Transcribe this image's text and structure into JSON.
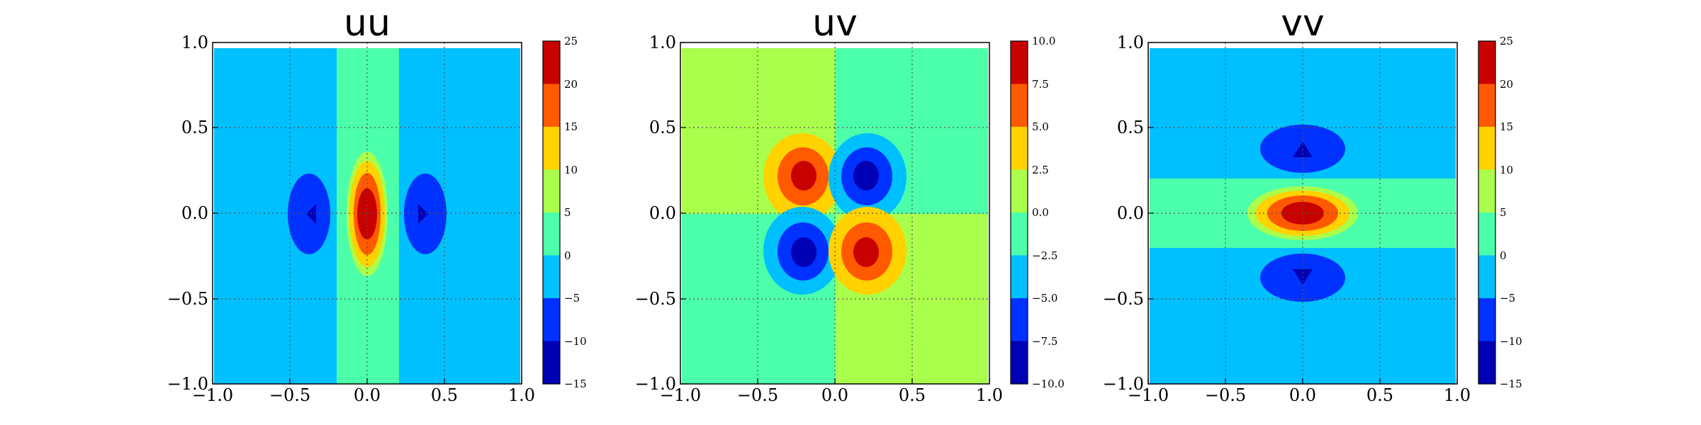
{
  "chart_data": [
    {
      "type": "contour",
      "title": "uu",
      "xlim": [
        -1.0,
        1.0
      ],
      "ylim": [
        -1.0,
        1.0
      ],
      "x_ticks": [
        "−1.0",
        "−0.5",
        "0.0",
        "0.5",
        "1.0"
      ],
      "y_ticks": [
        "1.0",
        "0.5",
        "0.0",
        "−0.5",
        "−1.0"
      ],
      "grid": true,
      "colorbar": {
        "levels": [
          "25",
          "20",
          "15",
          "10",
          "5",
          "0",
          "−5",
          "−10",
          "−15"
        ],
        "range": [
          -15,
          25
        ]
      },
      "background_level": "-5..0",
      "regions": [
        {
          "shape": "band",
          "x": [
            -0.2,
            0.2
          ],
          "level": "0..5"
        },
        {
          "shape": "blob",
          "cx": -0.35,
          "cy": 0.0,
          "rx": 0.09,
          "ry": 0.24,
          "level": "-10..-5",
          "peak": -12
        },
        {
          "shape": "blob",
          "cx": 0.35,
          "cy": 0.0,
          "rx": 0.09,
          "ry": 0.24,
          "level": "-10..-5",
          "peak": -12
        },
        {
          "shape": "blob",
          "cx": 0.0,
          "cy": 0.0,
          "rx": 0.13,
          "ry": 0.35,
          "level": "5..10",
          "peak": 23
        }
      ]
    },
    {
      "type": "contour",
      "title": "uv",
      "xlim": [
        -1.0,
        1.0
      ],
      "ylim": [
        -1.0,
        1.0
      ],
      "x_ticks": [
        "−1.0",
        "−0.5",
        "0.0",
        "0.5",
        "1.0"
      ],
      "y_ticks": [
        "1.0",
        "0.5",
        "0.0",
        "−0.5",
        "−1.0"
      ],
      "grid": true,
      "colorbar": {
        "levels": [
          "10.0",
          "7.5",
          "5.0",
          "2.5",
          "0.0",
          "−2.5",
          "−5.0",
          "−7.5",
          "−10.0"
        ],
        "range": [
          -10,
          10
        ]
      },
      "quadrants": {
        "upper_left": "0..2.5",
        "upper_right": "-2.5..0",
        "lower_left": "-2.5..0",
        "lower_right": "0..2.5"
      },
      "regions": [
        {
          "shape": "blob",
          "cx": -0.2,
          "cy": 0.2,
          "peak": 9
        },
        {
          "shape": "blob",
          "cx": 0.2,
          "cy": 0.2,
          "peak": -9
        },
        {
          "shape": "blob",
          "cx": -0.2,
          "cy": -0.2,
          "peak": -9
        },
        {
          "shape": "blob",
          "cx": 0.2,
          "cy": -0.2,
          "peak": 9
        }
      ]
    },
    {
      "type": "contour",
      "title": "vv",
      "xlim": [
        -1.0,
        1.0
      ],
      "ylim": [
        -1.0,
        1.0
      ],
      "x_ticks": [
        "−1.0",
        "−0.5",
        "0.0",
        "0.5",
        "1.0"
      ],
      "y_ticks": [
        "1.0",
        "0.5",
        "0.0",
        "−0.5",
        "−1.0"
      ],
      "grid": true,
      "colorbar": {
        "levels": [
          "25",
          "20",
          "15",
          "10",
          "5",
          "0",
          "−5",
          "−10",
          "−15"
        ],
        "range": [
          -15,
          25
        ]
      },
      "background_level": "-5..0",
      "regions": [
        {
          "shape": "band",
          "y": [
            -0.2,
            0.2
          ],
          "level": "0..5"
        },
        {
          "shape": "blob",
          "cx": 0.0,
          "cy": 0.35,
          "rx": 0.24,
          "ry": 0.09,
          "level": "-10..-5",
          "peak": -12
        },
        {
          "shape": "blob",
          "cx": 0.0,
          "cy": -0.35,
          "rx": 0.24,
          "ry": 0.09,
          "level": "-10..-5",
          "peak": -12
        },
        {
          "shape": "blob",
          "cx": 0.0,
          "cy": 0.0,
          "rx": 0.35,
          "ry": 0.13,
          "level": "5..10",
          "peak": 23
        }
      ]
    }
  ],
  "colors": {
    "c1": "#0000b5",
    "c2": "#0032ff",
    "c3": "#00c0ff",
    "c4": "#4cffaa",
    "c5": "#aaff4c",
    "c6": "#ffd200",
    "c7": "#ff5a00",
    "c8": "#c80000"
  }
}
